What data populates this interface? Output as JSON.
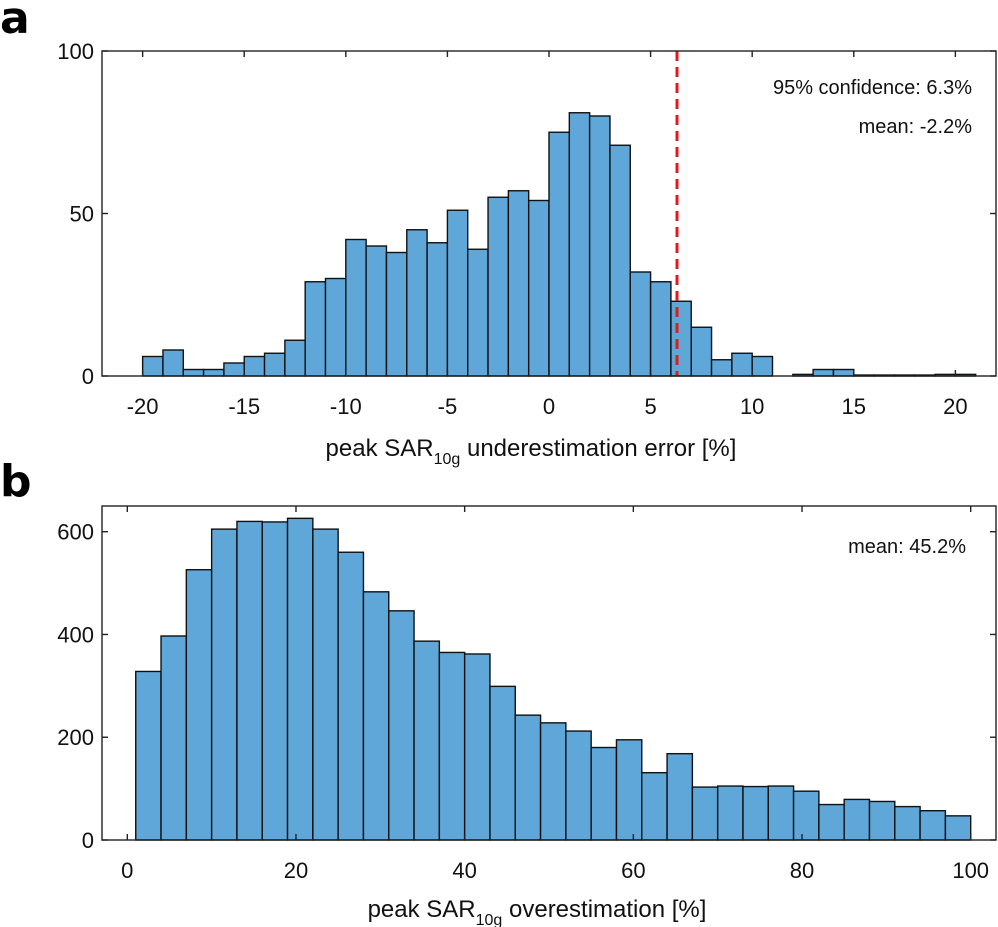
{
  "panels": {
    "a": {
      "letter": "a"
    },
    "b": {
      "letter": "b"
    }
  },
  "chart_data": [
    {
      "type": "bar",
      "panel": "a",
      "bin_start": -20,
      "bin_width": 1,
      "values": [
        6,
        8,
        2,
        2,
        4,
        6,
        7,
        11,
        29,
        30,
        42,
        40,
        38,
        45,
        41,
        51,
        39,
        55,
        57,
        54,
        75,
        81,
        80,
        71,
        32,
        29,
        23,
        15,
        5,
        7,
        6,
        0,
        0.5,
        2,
        2,
        0.3,
        0.3,
        0.3,
        0.3,
        0.5,
        0.5
      ],
      "xlim": [
        -22,
        22
      ],
      "ylim": [
        0,
        100
      ],
      "xticks": [
        -20,
        -15,
        -10,
        -5,
        0,
        5,
        10,
        15,
        20
      ],
      "yticks": [
        0,
        50,
        100
      ],
      "xlabel_main": "peak SAR",
      "xlabel_sub": "10g",
      "xlabel_rest": " underestimation error [%]",
      "threshold": 6.3,
      "threshold_color": "#e31a1c",
      "bar_color": "#5fa6d9",
      "annotations": [
        "95% confidence: 6.3%",
        "mean: -2.2%"
      ]
    },
    {
      "type": "bar",
      "panel": "b",
      "bin_start": 1,
      "bin_width": 3,
      "values": [
        328,
        397,
        526,
        605,
        620,
        619,
        626,
        605,
        560,
        483,
        446,
        387,
        365,
        362,
        299,
        243,
        228,
        212,
        180,
        195,
        131,
        168,
        103,
        105,
        104,
        105,
        95,
        69,
        79,
        75,
        65,
        57,
        47
      ],
      "xlim": [
        -3,
        103
      ],
      "ylim": [
        0,
        650
      ],
      "xticks": [
        0,
        20,
        40,
        60,
        80,
        100
      ],
      "yticks": [
        0,
        200,
        400,
        600
      ],
      "xlabel_main": "peak SAR",
      "xlabel_sub": "10g",
      "xlabel_rest": " overestimation [%]",
      "bar_color": "#5fa6d9",
      "annotations": [
        "mean: 45.2%"
      ]
    }
  ]
}
